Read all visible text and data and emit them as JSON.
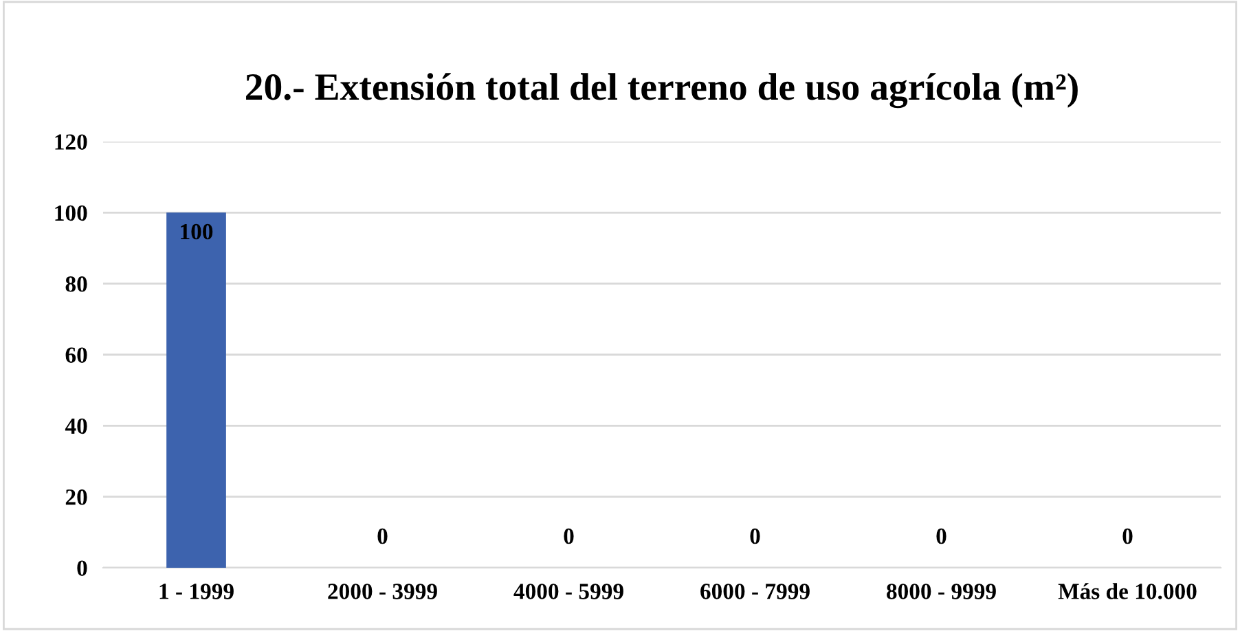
{
  "chart_data": {
    "type": "bar",
    "title": "20.- Extensión total del terreno de uso agrícola (m²)",
    "categories": [
      "1 - 1999",
      "2000 - 3999",
      "4000 - 5999",
      "6000 - 7999",
      "8000 - 9999",
      "Más de 10.000"
    ],
    "values": [
      100,
      0,
      0,
      0,
      0,
      0
    ],
    "color": "#3d63ae",
    "ylim": [
      0,
      120
    ],
    "yticks": [
      0,
      20,
      40,
      60,
      80,
      100,
      120
    ],
    "grid": "y",
    "data_labels": true
  }
}
